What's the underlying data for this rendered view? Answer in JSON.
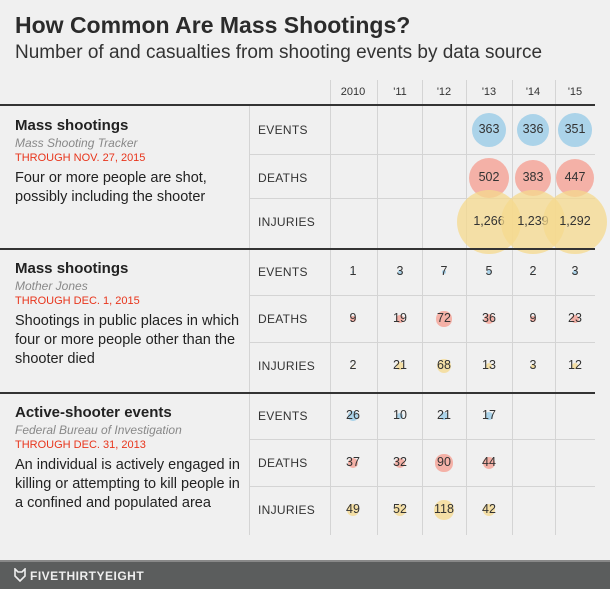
{
  "title": "How Common Are Mass Shootings?",
  "subtitle": "Number of and casualties from shooting events by data source",
  "footer": {
    "brand": "FIVETHIRTYEIGHT"
  },
  "colors": {
    "events": "#a3cfe8",
    "deaths": "#f4aa9e",
    "injuries": "#f6da8e",
    "date": "#e8351c"
  },
  "chart_data": {
    "type": "table",
    "encoding": "bubble area proportional to value",
    "columns": [
      "2010",
      "'11",
      "'12",
      "'13",
      "'14",
      "'15"
    ],
    "metrics": [
      "EVENTS",
      "DEATHS",
      "INJURIES"
    ],
    "groups": [
      {
        "title": "Mass shootings",
        "source": "Mass Shooting Tracker",
        "through": "THROUGH NOV. 27, 2015",
        "description": "Four or more people are shot, possibly including the shooter",
        "rows": [
          {
            "metric": "EVENTS",
            "values": [
              null,
              null,
              null,
              363,
              336,
              351
            ],
            "labels": [
              "",
              "",
              "",
              "363",
              "336",
              "351"
            ]
          },
          {
            "metric": "DEATHS",
            "values": [
              null,
              null,
              null,
              502,
              383,
              447
            ],
            "labels": [
              "",
              "",
              "",
              "502",
              "383",
              "447"
            ]
          },
          {
            "metric": "INJURIES",
            "values": [
              null,
              null,
              null,
              1266,
              1239,
              1292
            ],
            "labels": [
              "",
              "",
              "",
              "1,266",
              "1,239",
              "1,292"
            ]
          }
        ]
      },
      {
        "title": "Mass shootings",
        "source": "Mother Jones",
        "through": "THROUGH DEC. 1, 2015",
        "description": "Shootings in public places in which four or more people other than the shooter died",
        "rows": [
          {
            "metric": "EVENTS",
            "values": [
              1,
              3,
              7,
              5,
              2,
              3
            ],
            "labels": [
              "1",
              "3",
              "7",
              "5",
              "2",
              "3"
            ]
          },
          {
            "metric": "DEATHS",
            "values": [
              9,
              19,
              72,
              36,
              9,
              23
            ],
            "labels": [
              "9",
              "19",
              "72",
              "36",
              "9",
              "23"
            ]
          },
          {
            "metric": "INJURIES",
            "values": [
              2,
              21,
              68,
              13,
              3,
              12
            ],
            "labels": [
              "2",
              "21",
              "68",
              "13",
              "3",
              "12"
            ]
          }
        ]
      },
      {
        "title": "Active-shooter events",
        "source": "Federal Bureau of Investigation",
        "through": "THROUGH DEC. 31, 2013",
        "description": "An individual is actively engaged in killing or attempting to kill people in a confined and populated area",
        "rows": [
          {
            "metric": "EVENTS",
            "values": [
              26,
              10,
              21,
              17,
              null,
              null
            ],
            "labels": [
              "26",
              "10",
              "21",
              "17",
              "",
              ""
            ]
          },
          {
            "metric": "DEATHS",
            "values": [
              37,
              32,
              90,
              44,
              null,
              null
            ],
            "labels": [
              "37",
              "32",
              "90",
              "44",
              "",
              ""
            ]
          },
          {
            "metric": "INJURIES",
            "values": [
              49,
              52,
              118,
              42,
              null,
              null
            ],
            "labels": [
              "49",
              "52",
              "118",
              "42",
              "",
              ""
            ]
          }
        ]
      }
    ]
  }
}
